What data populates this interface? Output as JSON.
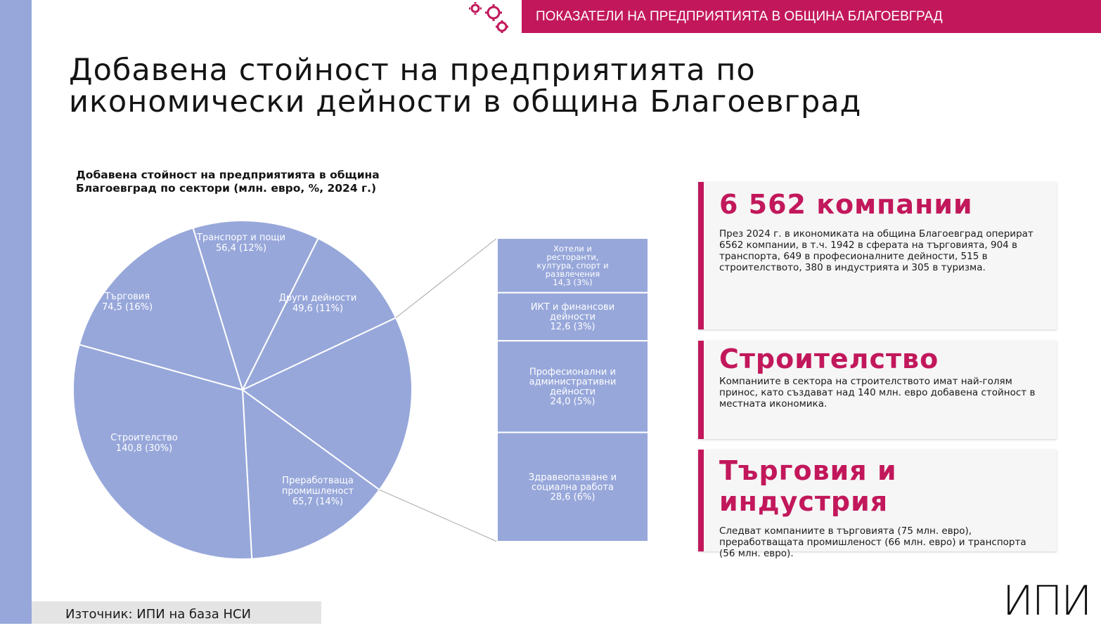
{
  "header": {
    "banner": "ПОКАЗАТЕЛИ НА ПРЕДПРИЯТИЯТА В ОБЩИНА БЛАГОЕВГРАД"
  },
  "title": {
    "line1": "Добавена стойност на предприятията по",
    "line2": "икономически дейности в община Благоевград"
  },
  "colors": {
    "accent": "#c2185b",
    "slice": "#97a7da",
    "sidebar": "#97a7da"
  },
  "chart_data": {
    "type": "pie",
    "title_line1": "Добавена стойност на предприятията в община",
    "title_line2": "Благоевград по сектори (млн. евро, %, 2024 г.)",
    "slices": [
      {
        "name": "Транспорт и пощи",
        "value": "56,4",
        "pct": "12%",
        "num": 56.4
      },
      {
        "name": "Други дейности",
        "value": "49,6",
        "pct": "11%",
        "num": 49.6
      },
      {
        "name": "Преработваща промишленост",
        "value": "65,7",
        "pct": "14%",
        "num": 65.7
      },
      {
        "name": "Строителство",
        "value": "140,8",
        "pct": "30%",
        "num": 140.8
      },
      {
        "name": "Търговия",
        "value": "74,5",
        "pct": "16%",
        "num": 74.5
      }
    ],
    "breakout": [
      {
        "name": "Хотели и ресторанти, култура, спорт и развлечения",
        "value": "14,3",
        "pct": "3%",
        "num": 14.3
      },
      {
        "name": "ИКТ и финансови дейности",
        "value": "12,6",
        "pct": "3%",
        "num": 12.6
      },
      {
        "name": "Професионални и административни дейности",
        "value": "24,0",
        "pct": "5%",
        "num": 24.0
      },
      {
        "name": "Здравеопазване и социална работа",
        "value": "28,6",
        "pct": "6%",
        "num": 28.6
      }
    ]
  },
  "cards": [
    {
      "head": "6 562 компании",
      "text": "През 2024 г. в икономиката на община Благоевград оперират 6562 компании, в т.ч. 1942 в сферата на търговията, 904 в транспорта, 649 в професионалните дейности, 515 в строителството, 380 в индустрията и 305 в туризма."
    },
    {
      "head": "Строителство",
      "text": "Компаниите в сектора на строителството имат най-голям принос, като създават над 140 млн. евро добавена стойност в местната икономика."
    },
    {
      "head": "Търговия и индустрия",
      "text": "Следват компаниите в търговията (75 млн. евро), преработващата промишленост (66 млн. евро) и транспорта (56 млн. евро)."
    }
  ],
  "footer": {
    "source": "Източник: ИПИ на база НСИ",
    "logo": "ИПИ"
  }
}
